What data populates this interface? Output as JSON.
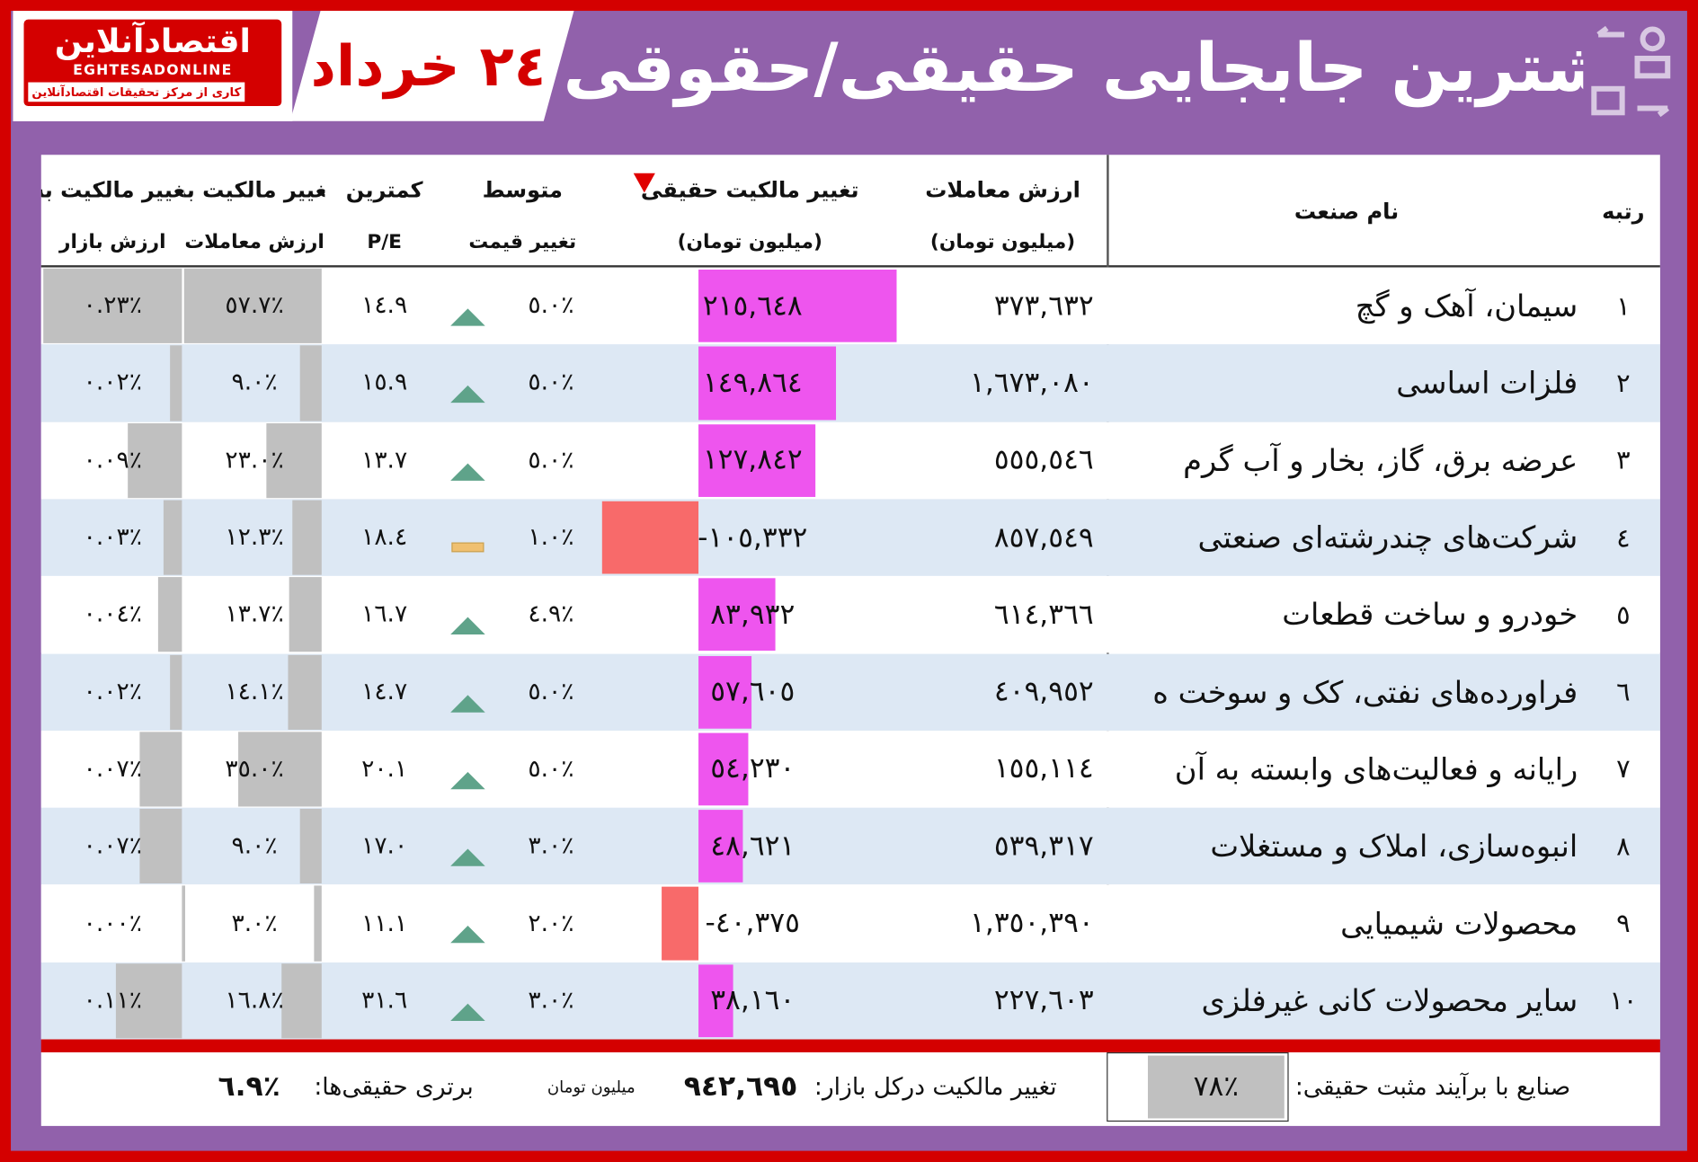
{
  "logo": {
    "name": "اقتصادآنلاین",
    "latin": "EGHTESADONLINE",
    "tagline": "کاری از مرکز تحقیقات اقتصادآنلاین"
  },
  "header": {
    "title": "بیشترین جابجایی حقیقی/حقوقی",
    "date": "٢٤ خرداد"
  },
  "table": {
    "columns": {
      "rank": [
        "رتبه"
      ],
      "name": [
        "نام صنعت"
      ],
      "trade_value": [
        "ارزش معاملات",
        "(میلیون تومان)"
      ],
      "real_change": [
        "تغییر مالکیت حقیقی",
        "(میلیون تومان)"
      ],
      "price_change": [
        "متوسط",
        "تغییر قیمت"
      ],
      "pe": [
        "کمترین",
        "P/E"
      ],
      "to_trade": [
        "تغییر مالکیت به",
        "ارزش معاملات"
      ],
      "to_market": [
        "تغییر مالکیت به",
        "ارزش بازار"
      ]
    },
    "rows": [
      {
        "rank": "١",
        "name": "سیمان، آهک و گچ",
        "trade_value": "٣٧٣,٦٣٢",
        "real_change": "٢١٥,٦٤٨",
        "price_change": "٥.٠٪",
        "icon": "up",
        "pe": "١٤.٩",
        "to_trade": "٥٧.٧٪",
        "to_market": "٠.٢٣٪"
      },
      {
        "rank": "٢",
        "name": "فلزات اساسی",
        "trade_value": "١,٦٧٣,٠٨٠",
        "real_change": "١٤٩,٨٦٤",
        "price_change": "٥.٠٪",
        "icon": "up",
        "pe": "١٥.٩",
        "to_trade": "٩.٠٪",
        "to_market": "٠.٠٢٪"
      },
      {
        "rank": "٣",
        "name": "عرضه برق، گاز، بخار و آب گرم",
        "trade_value": "٥٥٥,٥٤٦",
        "real_change": "١٢٧,٨٤٢",
        "price_change": "٥.٠٪",
        "icon": "up",
        "pe": "١٣.٧",
        "to_trade": "٢٣.٠٪",
        "to_market": "٠.٠٩٪"
      },
      {
        "rank": "٤",
        "name": "شرکت‌های چندرشته‌ای صنعتی",
        "trade_value": "٨٥٧,٥٤٩",
        "real_change": "-١٠٥,٣٣٢",
        "price_change": "١.٠٪",
        "icon": "flat",
        "pe": "١٨.٤",
        "to_trade": "١٢.٣٪",
        "to_market": "٠.٠٣٪"
      },
      {
        "rank": "٥",
        "name": "خودرو و ساخت قطعات",
        "trade_value": "٦١٤,٣٦٦",
        "real_change": "٨٣,٩٣٢",
        "price_change": "٤.٩٪",
        "icon": "up",
        "pe": "١٦.٧",
        "to_trade": "١٣.٧٪",
        "to_market": "٠.٠٤٪"
      },
      {
        "rank": "٦",
        "name": "فراورده‌های نفتی، کک و سوخت ه",
        "trade_value": "٤٠٩,٩٥٢",
        "real_change": "٥٧,٦٠٥",
        "price_change": "٥.٠٪",
        "icon": "up",
        "pe": "١٤.٧",
        "to_trade": "١٤.١٪",
        "to_market": "٠.٠٢٪"
      },
      {
        "rank": "٧",
        "name": "رایانه و فعالیت‌های وابسته به آن",
        "trade_value": "١٥٥,١١٤",
        "real_change": "٥٤,٢٣٠",
        "price_change": "٥.٠٪",
        "icon": "up",
        "pe": "٢٠.١",
        "to_trade": "٣٥.٠٪",
        "to_market": "٠.٠٧٪"
      },
      {
        "rank": "٨",
        "name": "انبوه‌سازی، املاک و مستغلات",
        "trade_value": "٥٣٩,٣١٧",
        "real_change": "٤٨,٦٢١",
        "price_change": "٣.٠٪",
        "icon": "up",
        "pe": "١٧.٠",
        "to_trade": "٩.٠٪",
        "to_market": "٠.٠٧٪"
      },
      {
        "rank": "٩",
        "name": "محصولات شیمیایی",
        "trade_value": "١,٣٥٠,٣٩٠",
        "real_change": "-٤٠,٣٧٥",
        "price_change": "٢.٠٪",
        "icon": "up",
        "pe": "١١.١",
        "to_trade": "٣.٠٪",
        "to_market": "٠.٠٠٪"
      },
      {
        "rank": "١٠",
        "name": "سایر محصولات کانی غیرفلزی",
        "trade_value": "٢٢٧,٦٠٣",
        "real_change": "٣٨,١٦٠",
        "price_change": "٣.٠٪",
        "icon": "up",
        "pe": "٣١.٦",
        "to_trade": "١٦.٨٪",
        "to_market": "٠.١١٪"
      }
    ]
  },
  "footer": {
    "positive_label": "صنایع با برآیند مثبت حقیقی:",
    "positive_value": "٧٨٪",
    "total_label": "تغییر مالکیت درکل بازار:",
    "total_value": "٩٤٢,٦٩٥",
    "total_unit": "میلیون تومان",
    "share_label": "برتری حقیقی‌ها:",
    "share_value": "٦.٩٪"
  }
}
